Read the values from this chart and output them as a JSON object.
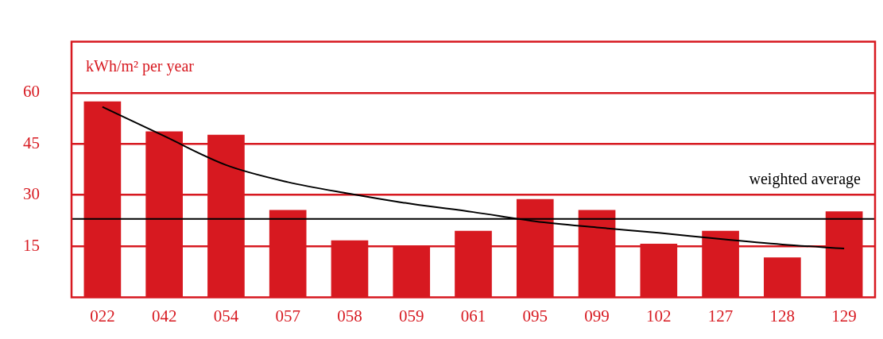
{
  "chart_data": {
    "type": "bar",
    "ylabel": "kWh/m² per year",
    "categories": [
      "022",
      "042",
      "054",
      "057",
      "058",
      "059",
      "061",
      "095",
      "099",
      "102",
      "127",
      "128",
      "129"
    ],
    "series": [
      {
        "color": "#d71920",
        "values": [
          57.5,
          48.7,
          47.7,
          25.6,
          16.7,
          14.9,
          19.5,
          28.8,
          25.6,
          15.7,
          19.5,
          11.7,
          25.2
        ]
      },
      {
        "type": "line",
        "color": "#000000",
        "values": [
          55.9,
          47.3,
          38.8,
          33.8,
          30.4,
          27.4,
          25,
          22.3,
          20.5,
          18.9,
          17.1,
          15.5,
          14.3
        ]
      }
    ],
    "ylim": [
      0,
      75
    ],
    "yticks": [
      15,
      30,
      45,
      60
    ],
    "grid": "y",
    "ref_lines": [
      {
        "axis": "y",
        "value": 23,
        "label": "weighted average",
        "color": "#000000"
      }
    ]
  }
}
